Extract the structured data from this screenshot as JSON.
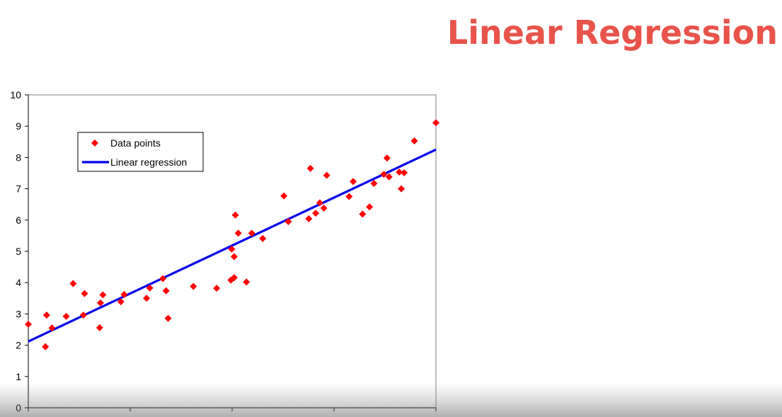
{
  "slide": {
    "title": "Linear Regression",
    "title_color": "#e8534a"
  },
  "chart_data": {
    "type": "scatter",
    "title": "",
    "xlabel": "",
    "ylabel": "",
    "ylim": [
      0,
      10
    ],
    "xlim": [
      0,
      10
    ],
    "y_ticks": [
      "0",
      "1",
      "2",
      "3",
      "4",
      "5",
      "6",
      "7",
      "8",
      "9",
      "10"
    ],
    "grid": false,
    "legend_position": "top-left",
    "series": [
      {
        "name": "Data points",
        "kind": "scatter",
        "marker": "diamond",
        "color": "#ff0000",
        "points": [
          [
            0.0,
            2.67
          ],
          [
            0.42,
            1.95
          ],
          [
            0.45,
            2.96
          ],
          [
            0.58,
            2.55
          ],
          [
            0.93,
            2.92
          ],
          [
            1.1,
            3.97
          ],
          [
            1.35,
            2.96
          ],
          [
            1.38,
            3.65
          ],
          [
            1.75,
            2.56
          ],
          [
            1.77,
            3.35
          ],
          [
            1.83,
            3.61
          ],
          [
            2.27,
            3.39
          ],
          [
            2.35,
            3.62
          ],
          [
            2.9,
            3.5
          ],
          [
            2.98,
            3.83
          ],
          [
            3.3,
            4.13
          ],
          [
            3.38,
            3.74
          ],
          [
            3.43,
            2.86
          ],
          [
            4.05,
            3.88
          ],
          [
            4.62,
            3.82
          ],
          [
            4.97,
            4.08
          ],
          [
            4.99,
            5.07
          ],
          [
            5.05,
            4.16
          ],
          [
            5.05,
            4.83
          ],
          [
            5.08,
            6.16
          ],
          [
            5.15,
            5.58
          ],
          [
            5.35,
            4.02
          ],
          [
            5.48,
            5.58
          ],
          [
            5.75,
            5.41
          ],
          [
            6.27,
            6.77
          ],
          [
            6.38,
            5.95
          ],
          [
            6.88,
            6.04
          ],
          [
            6.92,
            7.65
          ],
          [
            7.05,
            6.22
          ],
          [
            7.15,
            6.55
          ],
          [
            7.25,
            6.38
          ],
          [
            7.32,
            7.43
          ],
          [
            7.87,
            6.75
          ],
          [
            7.97,
            7.23
          ],
          [
            8.2,
            6.19
          ],
          [
            8.37,
            6.42
          ],
          [
            8.48,
            7.17
          ],
          [
            8.72,
            7.46
          ],
          [
            8.8,
            7.98
          ],
          [
            8.85,
            7.38
          ],
          [
            9.1,
            7.53
          ],
          [
            9.15,
            7.0
          ],
          [
            9.22,
            7.51
          ],
          [
            9.47,
            8.53
          ],
          [
            10.0,
            9.11
          ]
        ]
      },
      {
        "name": "Linear regression",
        "kind": "line",
        "color": "#0000ee",
        "points": [
          [
            0,
            2.12
          ],
          [
            10,
            8.25
          ]
        ]
      }
    ]
  }
}
